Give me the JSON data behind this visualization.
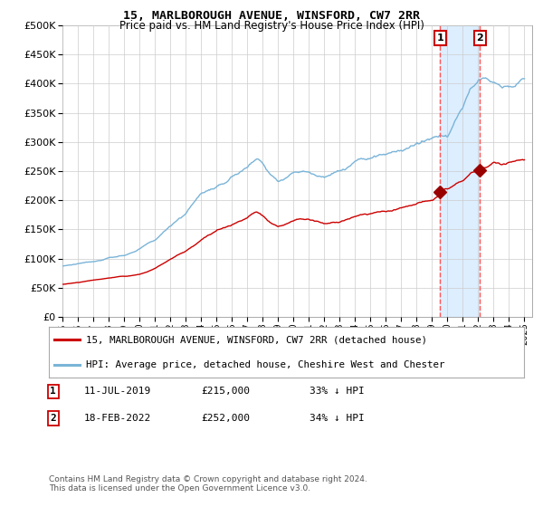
{
  "title": "15, MARLBOROUGH AVENUE, WINSFORD, CW7 2RR",
  "subtitle": "Price paid vs. HM Land Registry's House Price Index (HPI)",
  "legend_line1": "15, MARLBOROUGH AVENUE, WINSFORD, CW7 2RR (detached house)",
  "legend_line2": "HPI: Average price, detached house, Cheshire West and Chester",
  "annotation1_label": "1",
  "annotation1_date": "11-JUL-2019",
  "annotation1_price": "£215,000",
  "annotation1_hpi": "33% ↓ HPI",
  "annotation2_label": "2",
  "annotation2_date": "18-FEB-2022",
  "annotation2_price": "£252,000",
  "annotation2_hpi": "34% ↓ HPI",
  "footnote": "Contains HM Land Registry data © Crown copyright and database right 2024.\nThis data is licensed under the Open Government Licence v3.0.",
  "hpi_color": "#7ab4d8",
  "price_color": "#cc0000",
  "marker_color": "#990000",
  "vline_color": "#ff5555",
  "shade_color": "#ddeeff",
  "background_color": "#ffffff",
  "grid_color": "#cccccc",
  "annotation_box_color": "#cc0000",
  "ylim": [
    0,
    500000
  ],
  "yticks": [
    0,
    50000,
    100000,
    150000,
    200000,
    250000,
    300000,
    350000,
    400000,
    450000,
    500000
  ],
  "sale1_x": 2019.53,
  "sale1_y": 215000,
  "sale2_x": 2022.12,
  "sale2_y": 252000,
  "xmin": 1995,
  "xmax": 2025.5,
  "hpi_keypoints": [
    [
      1995.0,
      87000
    ],
    [
      1995.5,
      88000
    ],
    [
      1996.0,
      91000
    ],
    [
      1996.5,
      93000
    ],
    [
      1997.0,
      96000
    ],
    [
      1997.5,
      98000
    ],
    [
      1998.0,
      101000
    ],
    [
      1998.5,
      103000
    ],
    [
      1999.0,
      106000
    ],
    [
      1999.5,
      110000
    ],
    [
      2000.0,
      116000
    ],
    [
      2000.5,
      124000
    ],
    [
      2001.0,
      132000
    ],
    [
      2001.5,
      143000
    ],
    [
      2002.0,
      157000
    ],
    [
      2002.5,
      168000
    ],
    [
      2003.0,
      176000
    ],
    [
      2003.5,
      195000
    ],
    [
      2004.0,
      212000
    ],
    [
      2004.5,
      218000
    ],
    [
      2005.0,
      220000
    ],
    [
      2005.5,
      230000
    ],
    [
      2006.0,
      240000
    ],
    [
      2006.5,
      248000
    ],
    [
      2007.0,
      256000
    ],
    [
      2007.3,
      268000
    ],
    [
      2007.6,
      272000
    ],
    [
      2008.0,
      262000
    ],
    [
      2008.5,
      244000
    ],
    [
      2009.0,
      235000
    ],
    [
      2009.5,
      238000
    ],
    [
      2010.0,
      248000
    ],
    [
      2010.5,
      251000
    ],
    [
      2011.0,
      248000
    ],
    [
      2011.5,
      244000
    ],
    [
      2012.0,
      241000
    ],
    [
      2012.5,
      246000
    ],
    [
      2013.0,
      249000
    ],
    [
      2013.5,
      256000
    ],
    [
      2014.0,
      265000
    ],
    [
      2014.5,
      270000
    ],
    [
      2015.0,
      273000
    ],
    [
      2015.5,
      276000
    ],
    [
      2016.0,
      279000
    ],
    [
      2016.5,
      282000
    ],
    [
      2017.0,
      286000
    ],
    [
      2017.5,
      291000
    ],
    [
      2018.0,
      296000
    ],
    [
      2018.5,
      299000
    ],
    [
      2019.0,
      305000
    ],
    [
      2019.5,
      308000
    ],
    [
      2020.0,
      313000
    ],
    [
      2020.5,
      335000
    ],
    [
      2021.0,
      362000
    ],
    [
      2021.5,
      388000
    ],
    [
      2022.0,
      408000
    ],
    [
      2022.5,
      412000
    ],
    [
      2023.0,
      402000
    ],
    [
      2023.5,
      396000
    ],
    [
      2024.0,
      394000
    ],
    [
      2024.5,
      399000
    ],
    [
      2025.0,
      404000
    ]
  ],
  "price_keypoints": [
    [
      1995.0,
      56000
    ],
    [
      1995.5,
      57500
    ],
    [
      1996.0,
      59000
    ],
    [
      1996.5,
      61000
    ],
    [
      1997.0,
      63000
    ],
    [
      1997.5,
      65000
    ],
    [
      1998.0,
      66500
    ],
    [
      1998.5,
      68000
    ],
    [
      1999.0,
      69500
    ],
    [
      1999.5,
      71000
    ],
    [
      2000.0,
      73000
    ],
    [
      2000.5,
      77000
    ],
    [
      2001.0,
      83000
    ],
    [
      2001.5,
      91000
    ],
    [
      2002.0,
      99000
    ],
    [
      2002.5,
      106000
    ],
    [
      2003.0,
      112000
    ],
    [
      2003.5,
      122000
    ],
    [
      2004.0,
      132000
    ],
    [
      2004.5,
      140000
    ],
    [
      2005.0,
      148000
    ],
    [
      2005.5,
      153000
    ],
    [
      2006.0,
      158000
    ],
    [
      2006.5,
      164000
    ],
    [
      2007.0,
      170000
    ],
    [
      2007.3,
      176000
    ],
    [
      2007.6,
      180000
    ],
    [
      2008.0,
      174000
    ],
    [
      2008.5,
      161000
    ],
    [
      2009.0,
      155000
    ],
    [
      2009.5,
      159000
    ],
    [
      2010.0,
      165000
    ],
    [
      2010.5,
      168000
    ],
    [
      2011.0,
      167000
    ],
    [
      2011.5,
      163000
    ],
    [
      2012.0,
      159000
    ],
    [
      2012.5,
      162000
    ],
    [
      2013.0,
      163000
    ],
    [
      2013.5,
      167000
    ],
    [
      2014.0,
      172000
    ],
    [
      2014.5,
      175000
    ],
    [
      2015.0,
      177000
    ],
    [
      2015.5,
      179000
    ],
    [
      2016.0,
      181000
    ],
    [
      2016.5,
      184000
    ],
    [
      2017.0,
      187000
    ],
    [
      2017.5,
      191000
    ],
    [
      2018.0,
      194000
    ],
    [
      2018.5,
      197000
    ],
    [
      2019.0,
      201000
    ],
    [
      2019.4,
      207000
    ],
    [
      2019.53,
      215000
    ],
    [
      2019.7,
      217000
    ],
    [
      2020.0,
      218000
    ],
    [
      2020.5,
      226000
    ],
    [
      2021.0,
      236000
    ],
    [
      2021.5,
      246000
    ],
    [
      2022.12,
      252000
    ],
    [
      2022.5,
      258000
    ],
    [
      2023.0,
      266000
    ],
    [
      2023.5,
      263000
    ],
    [
      2024.0,
      264000
    ],
    [
      2024.5,
      268000
    ],
    [
      2025.0,
      269000
    ]
  ]
}
